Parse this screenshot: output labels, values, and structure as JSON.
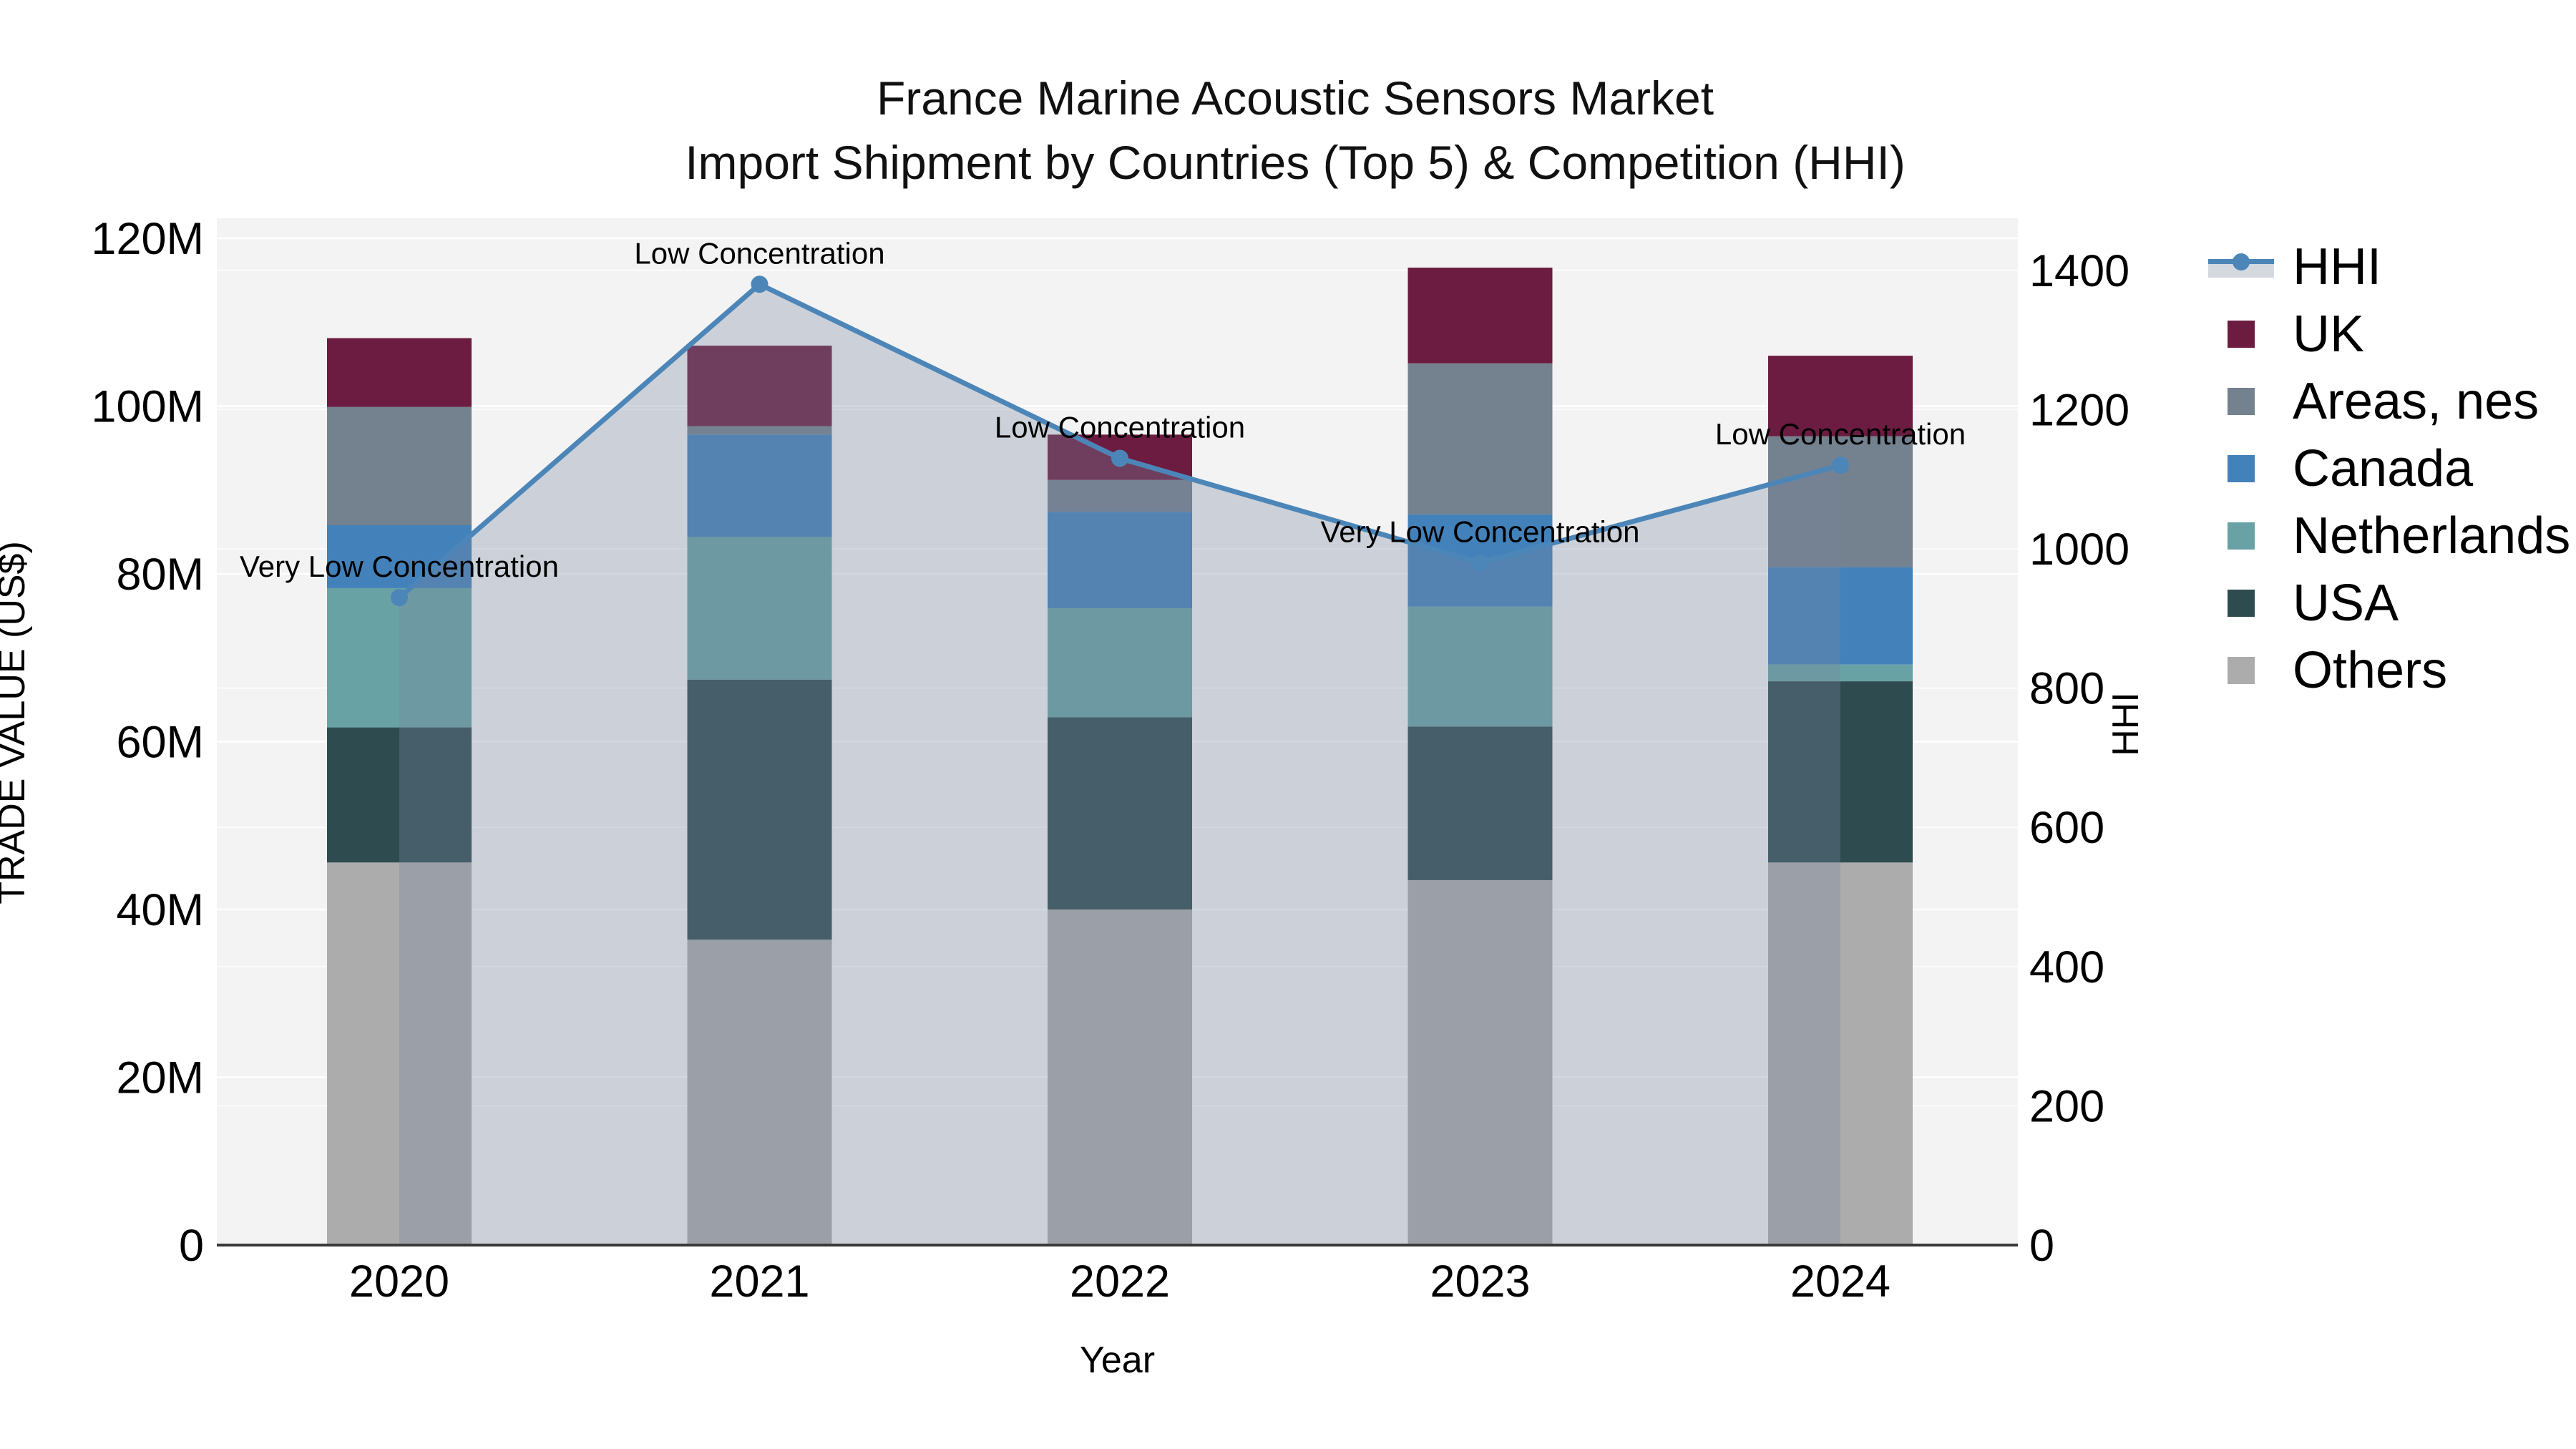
{
  "header": {
    "title": "France Marine Acoustic Sensors Market",
    "subtitle": "Import Shipment by Countries (Top 5) & Competition (HHI)"
  },
  "chart_data": {
    "type": "bar+line",
    "title": "France Marine Acoustic Sensors Market",
    "subtitle": "Import Shipment by Countries (Top 5) & Competition (HHI)",
    "categories": [
      "2020",
      "2021",
      "2022",
      "2023",
      "2024"
    ],
    "values_unit": "million US$",
    "stack_order_bottom_to_top": [
      "Others",
      "USA",
      "Netherlands",
      "Canada",
      "Areas, nes",
      "UK"
    ],
    "series": [
      {
        "name": "UK",
        "color": "#6B1C40",
        "values": [
          8.2,
          9.6,
          5.4,
          11.4,
          9.6
        ]
      },
      {
        "name": "Areas, nes",
        "color": "#74818F",
        "values": [
          14.1,
          1.0,
          3.8,
          18.0,
          15.6
        ]
      },
      {
        "name": "Canada",
        "color": "#4381BA",
        "values": [
          7.5,
          12.2,
          11.5,
          11.0,
          11.6
        ]
      },
      {
        "name": "Netherlands",
        "color": "#68A2A4",
        "values": [
          16.6,
          17.0,
          13.0,
          14.3,
          2.0
        ]
      },
      {
        "name": "USA",
        "color": "#2E4C50",
        "values": [
          16.1,
          31.0,
          22.9,
          18.3,
          21.6
        ]
      },
      {
        "name": "Others",
        "color": "#ACACAC",
        "values": [
          45.6,
          36.4,
          40.0,
          43.5,
          45.6
        ]
      }
    ],
    "bar_totals": [
      108.1,
      107.2,
      96.6,
      116.5,
      106.0
    ],
    "line_series": {
      "name": "HHI",
      "color": "#4C86B8",
      "fill": "rgba(120,135,160,0.32)",
      "values": [
        930,
        1380,
        1130,
        980,
        1120
      ],
      "annotations": [
        "Very Low Concentration",
        "Low Concentration",
        "Low Concentration",
        "Very Low Concentration",
        "Low Concentration"
      ]
    },
    "left_axis": {
      "label": "TRADE VALUE (US$)",
      "ticks": [
        "0",
        "20M",
        "40M",
        "60M",
        "80M",
        "100M",
        "120M"
      ],
      "tick_values": [
        0,
        20,
        40,
        60,
        80,
        100,
        120
      ],
      "range": [
        0,
        122.5
      ]
    },
    "right_axis": {
      "label": "HHI",
      "ticks": [
        "0",
        "200",
        "400",
        "600",
        "800",
        "1000",
        "1200",
        "1400"
      ],
      "tick_values": [
        0,
        200,
        400,
        600,
        800,
        1000,
        1200,
        1400
      ],
      "range": [
        0,
        1475
      ]
    },
    "x_axis": {
      "label": "Year"
    },
    "grid": "on",
    "legend_position": "right",
    "legend_items": [
      {
        "label": "HHI"
      },
      {
        "label": "UK"
      },
      {
        "label": "Areas, nes"
      },
      {
        "label": "Canada"
      },
      {
        "label": "Netherlands"
      },
      {
        "label": "USA"
      },
      {
        "label": "Others"
      }
    ],
    "style": {
      "figure_bg": "#FFFFFF",
      "plot_bg": "#F4F3F4",
      "grid_color": "#FFFFFF",
      "axis_line_color": "#3A3A3A",
      "text_color": "#000000"
    }
  }
}
